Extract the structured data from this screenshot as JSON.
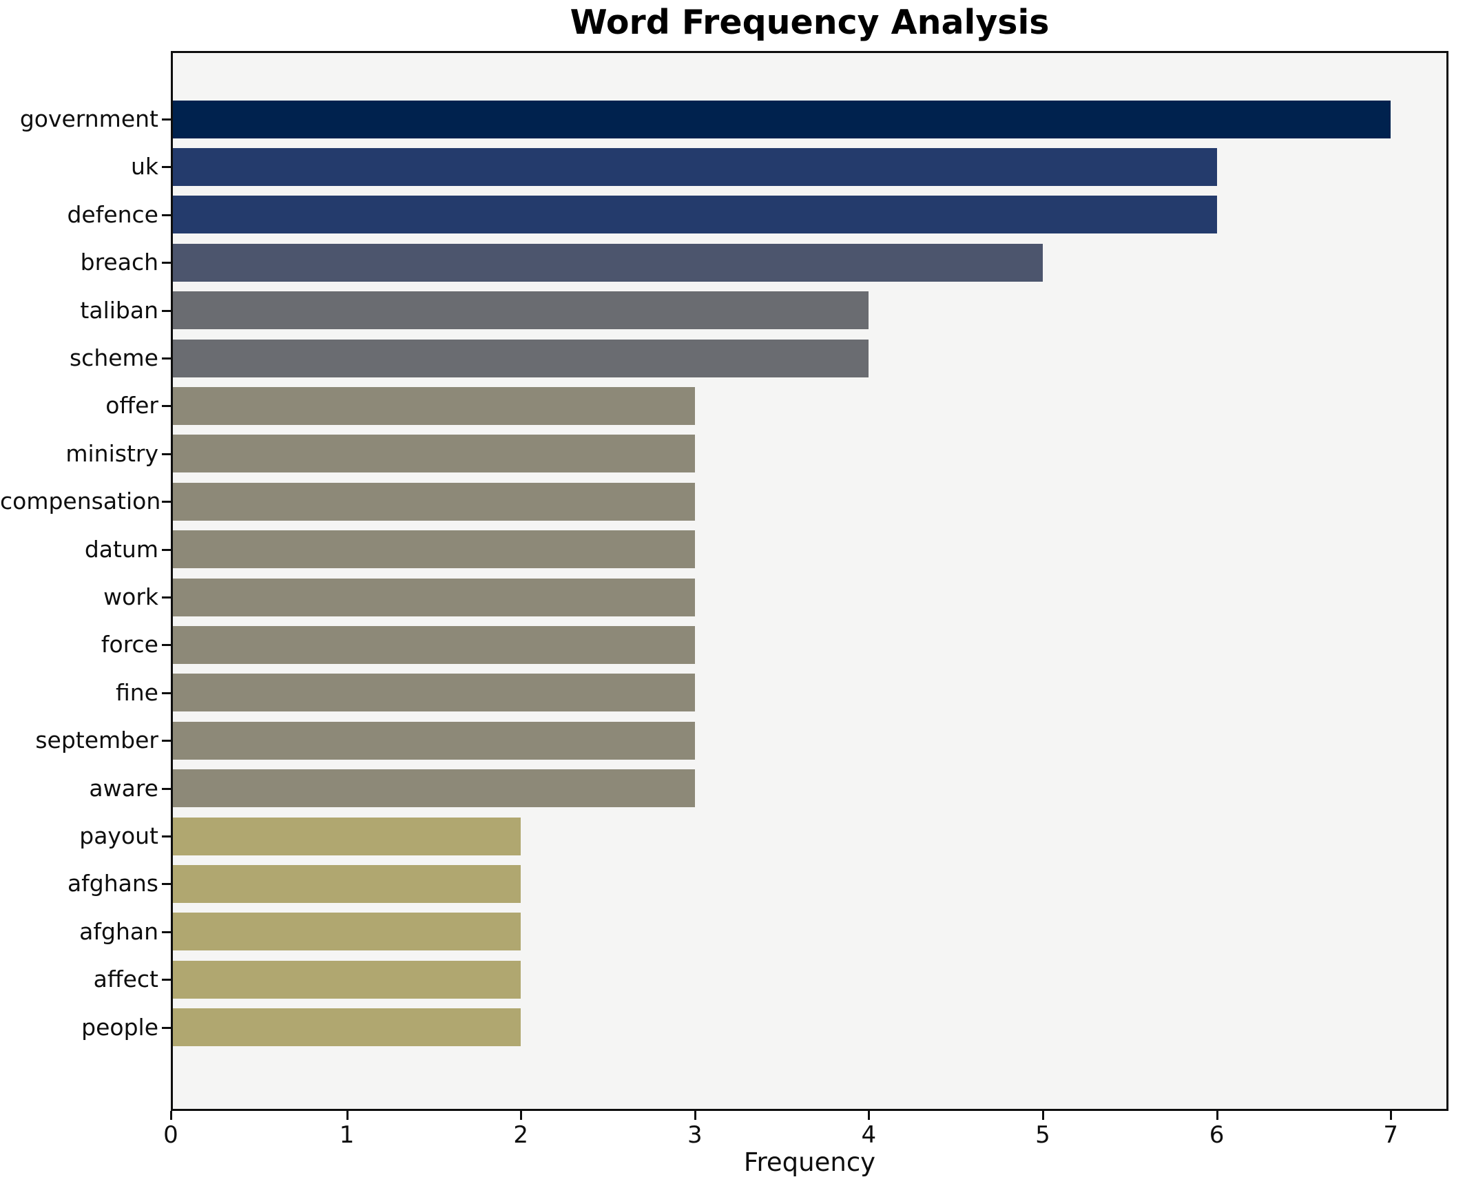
{
  "figure": {
    "title": "Word Frequency Analysis",
    "xlabel": "Frequency"
  },
  "chart_data": {
    "type": "bar",
    "orientation": "horizontal",
    "title": "Word Frequency Analysis",
    "xlabel": "Frequency",
    "ylabel": "",
    "xlim": [
      0,
      7.32
    ],
    "xticks": [
      0,
      1,
      2,
      3,
      4,
      5,
      6,
      7
    ],
    "grid": false,
    "legend_position": "none",
    "plot_background": "#f5f5f4",
    "figure_background": "#ffffff",
    "spine_color": "#0e0e0e",
    "categories": [
      "government",
      "uk",
      "defence",
      "breach",
      "taliban",
      "scheme",
      "offer",
      "ministry",
      "compensation",
      "datum",
      "work",
      "force",
      "fine",
      "september",
      "aware",
      "payout",
      "afghans",
      "afghan",
      "affect",
      "people"
    ],
    "values": [
      7,
      6,
      6,
      5,
      4,
      4,
      3,
      3,
      3,
      3,
      3,
      3,
      3,
      3,
      3,
      2,
      2,
      2,
      2,
      2
    ],
    "bar_colors": [
      "#00224e",
      "#243b6c",
      "#243b6c",
      "#4c556d",
      "#6a6c71",
      "#6a6c71",
      "#8d8978",
      "#8d8978",
      "#8d8978",
      "#8d8978",
      "#8d8978",
      "#8d8978",
      "#8d8978",
      "#8d8978",
      "#8d8978",
      "#b0a770",
      "#b0a770",
      "#b0a770",
      "#b0a770",
      "#b0a770"
    ]
  }
}
